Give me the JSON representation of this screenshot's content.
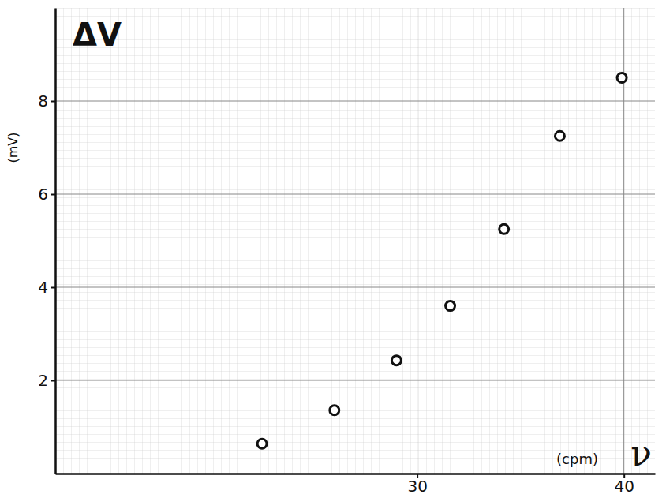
{
  "chart_data": {
    "type": "scatter",
    "title": "ΔV",
    "y_label": "(mV)",
    "x_label": "ν",
    "x_unit": "(cpm)",
    "x": [
      22.5,
      26.0,
      29.0,
      31.6,
      34.2,
      36.9,
      39.9
    ],
    "values": [
      0.64,
      1.36,
      2.43,
      3.6,
      5.25,
      7.25,
      8.5
    ],
    "xlim": [
      12.5,
      41.5
    ],
    "ylim": [
      0,
      10
    ],
    "xticks": [
      30,
      40
    ],
    "yticks": [
      2,
      4,
      6,
      8
    ],
    "color": "#111111",
    "marker": "circle-open",
    "grid": true
  }
}
